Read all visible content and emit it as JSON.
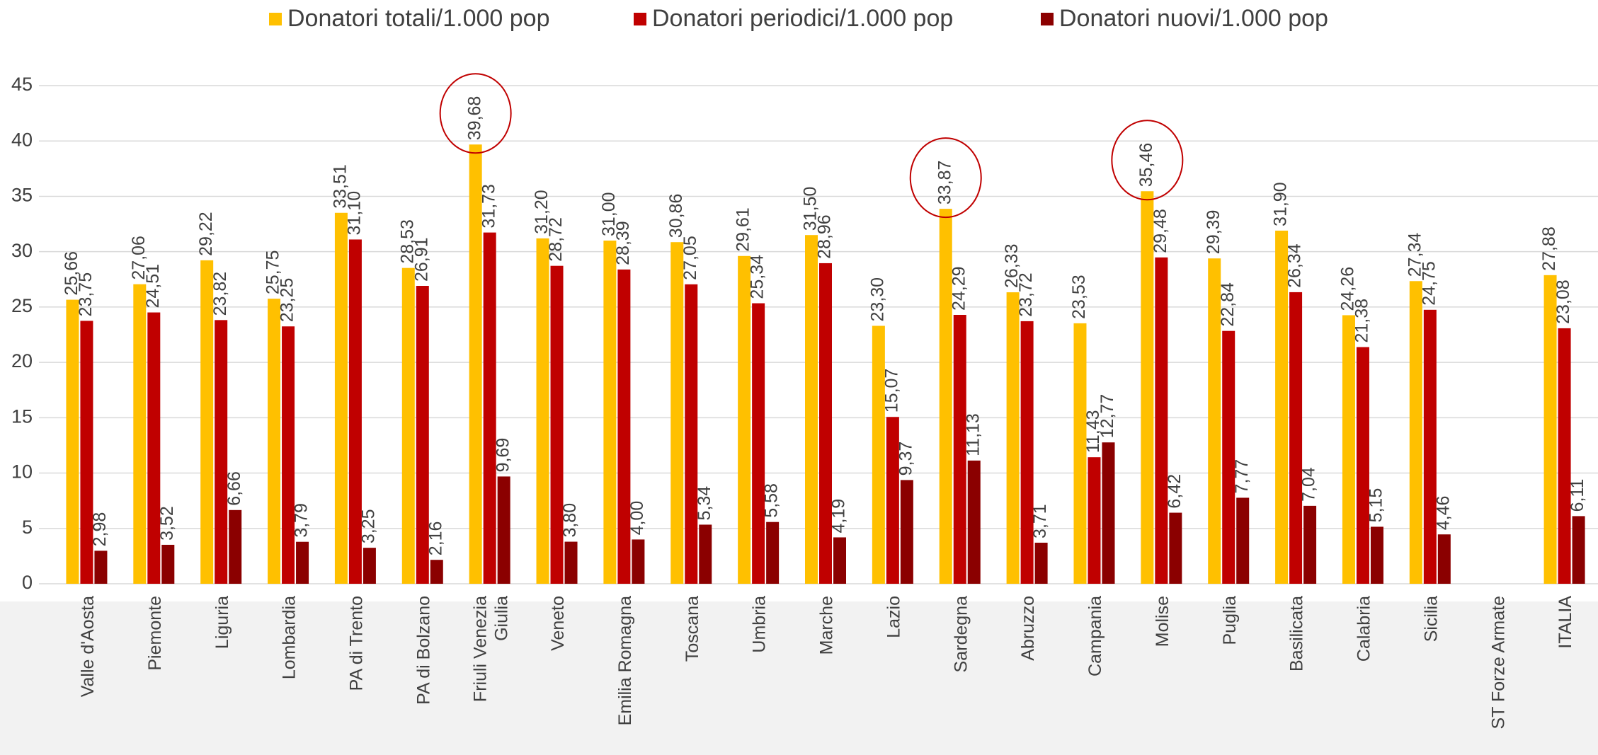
{
  "chart_data": {
    "type": "bar",
    "categories": [
      "Valle d'Aosta",
      "Piemonte",
      "Liguria",
      "Lombardia",
      "PA di Trento",
      "PA di Bolzano",
      "Friuli Venezia Giulia",
      "Veneto",
      "Emilia Romagna",
      "Toscana",
      "Umbria",
      "Marche",
      "Lazio",
      "Sardegna",
      "Abruzzo",
      "Campania",
      "Molise",
      "Puglia",
      "Basilicata",
      "Calabria",
      "Sicilia",
      "ST Forze Armate",
      "ITALIA"
    ],
    "series": [
      {
        "name": "Donatori totali/1.000 pop",
        "color": "#ffc000",
        "values": [
          25.66,
          27.06,
          29.22,
          25.75,
          33.51,
          28.53,
          39.68,
          31.2,
          31.0,
          30.86,
          29.61,
          31.5,
          23.3,
          33.87,
          26.33,
          23.53,
          35.46,
          29.39,
          31.9,
          24.26,
          27.34,
          null,
          27.88
        ],
        "value_labels": [
          "25,66",
          "27,06",
          "29,22",
          "25,75",
          "33,51",
          "28,53",
          "39,68",
          "31,20",
          "31,00",
          "30,86",
          "29,61",
          "31,50",
          "23,30",
          "33,87",
          "26,33",
          "23,53",
          "35,46",
          "29,39",
          "31,90",
          "24,26",
          "27,34",
          null,
          "27,88"
        ]
      },
      {
        "name": "Donatori periodici/1.000 pop",
        "color": "#c00000",
        "values": [
          23.75,
          24.51,
          23.82,
          23.25,
          31.1,
          26.91,
          31.73,
          28.72,
          28.39,
          27.05,
          25.34,
          28.96,
          15.07,
          24.29,
          23.72,
          11.43,
          29.48,
          22.84,
          26.34,
          21.38,
          24.75,
          null,
          23.08
        ],
        "value_labels": [
          "23,75",
          "24,51",
          "23,82",
          "23,25",
          "31,10",
          "26,91",
          "31,73",
          "28,72",
          "28,39",
          "27,05",
          "25,34",
          "28,96",
          "15,07",
          "24,29",
          "23,72",
          "11,43",
          "29,48",
          "22,84",
          "26,34",
          "21,38",
          "24,75",
          null,
          "23,08"
        ]
      },
      {
        "name": "Donatori nuovi/1.000 pop",
        "color": "#8b0000",
        "values": [
          2.98,
          3.52,
          6.66,
          3.79,
          3.25,
          2.16,
          9.69,
          3.8,
          4.0,
          5.34,
          5.58,
          4.19,
          9.37,
          11.13,
          3.71,
          12.77,
          6.42,
          7.77,
          7.04,
          5.15,
          4.46,
          null,
          6.11
        ],
        "value_labels": [
          "2,98",
          "3,52",
          "6,66",
          "3,79",
          "3,25",
          "2,16",
          "9,69",
          "3,80",
          "4,00",
          "5,34",
          "5,58",
          "4,19",
          "9,37",
          "11,13",
          "3,71",
          "12,77",
          "6,42",
          "7,77",
          "7,04",
          "5,15",
          "4,46",
          null,
          "6,11"
        ]
      }
    ],
    "ylim": [
      0,
      45
    ],
    "yticks": [
      0,
      5,
      10,
      15,
      20,
      25,
      30,
      35,
      40,
      45
    ],
    "grid": true,
    "legend": "top"
  }
}
